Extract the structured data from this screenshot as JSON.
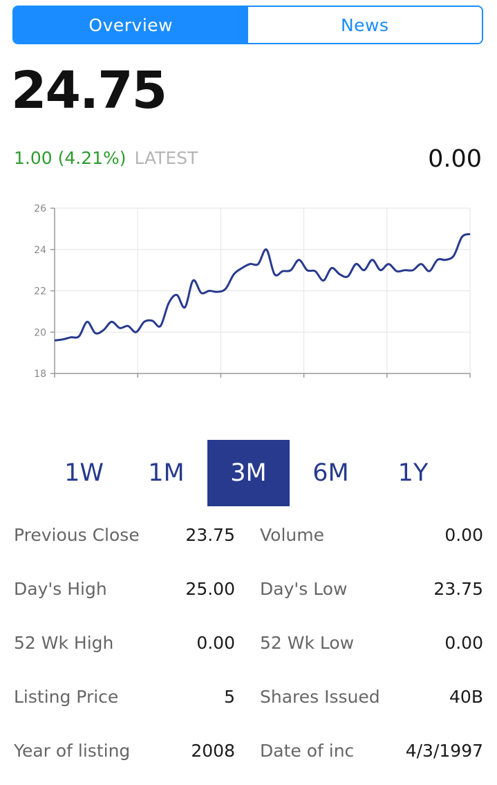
{
  "tabs": [
    {
      "label": "Overview",
      "active": true
    },
    {
      "label": "News",
      "active": false
    }
  ],
  "quote": {
    "price": "24.75",
    "change": "1.00 (4.21%)",
    "change_label": "LATEST",
    "right_value": "0.00"
  },
  "colors": {
    "accent": "#1a8cff",
    "positive": "#2e9b2e",
    "line": "#283a8e"
  },
  "chart_data": {
    "type": "line",
    "ylim": [
      18,
      26
    ],
    "yticks": [
      "18",
      "20",
      "22",
      "24",
      "26"
    ],
    "grid": true,
    "series": [
      {
        "values": [
          19.6,
          19.65,
          19.75,
          19.8,
          20.5,
          19.95,
          20.1,
          20.5,
          20.2,
          20.3,
          20.0,
          20.5,
          20.55,
          20.3,
          21.4,
          21.8,
          21.2,
          22.5,
          21.9,
          22.0,
          21.95,
          22.1,
          22.8,
          23.1,
          23.3,
          23.3,
          24.0,
          22.8,
          22.95,
          23.0,
          23.5,
          23.0,
          22.95,
          22.5,
          23.1,
          22.8,
          22.7,
          23.3,
          23.0,
          23.5,
          23.0,
          23.3,
          22.95,
          23.0,
          23.0,
          23.3,
          22.95,
          23.5,
          23.5,
          23.7,
          24.6,
          24.75
        ]
      }
    ]
  },
  "ranges": [
    {
      "label": "1W",
      "active": false
    },
    {
      "label": "1M",
      "active": false
    },
    {
      "label": "3M",
      "active": true
    },
    {
      "label": "6M",
      "active": false
    },
    {
      "label": "1Y",
      "active": false
    }
  ],
  "stats": [
    {
      "left_label": "Previous Close",
      "left_value": "23.75",
      "right_label": "Volume",
      "right_value": "0.00"
    },
    {
      "left_label": "Day's High",
      "left_value": "25.00",
      "right_label": "Day's Low",
      "right_value": "23.75"
    },
    {
      "left_label": "52 Wk High",
      "left_value": "0.00",
      "right_label": "52 Wk Low",
      "right_value": "0.00"
    },
    {
      "left_label": "Listing Price",
      "left_value": "5",
      "right_label": "Shares Issued",
      "right_value": "40B"
    },
    {
      "left_label": "Year of listing",
      "left_value": "2008",
      "right_label": "Date of inc",
      "right_value": "4/3/1997"
    }
  ]
}
